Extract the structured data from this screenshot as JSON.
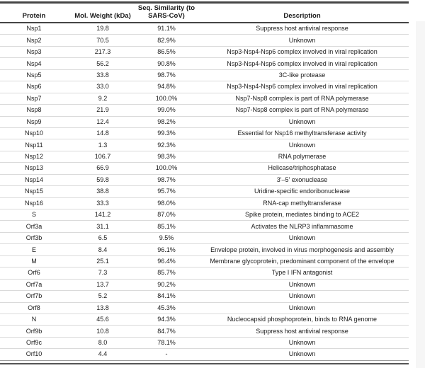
{
  "table": {
    "columns": [
      {
        "key": "protein",
        "label": "Protein"
      },
      {
        "key": "weight",
        "label": "Mol. Weight (kDa)"
      },
      {
        "key": "similarity",
        "label": "Seq. Similarity (to\nSARS-CoV)"
      },
      {
        "key": "description",
        "label": "Description"
      }
    ],
    "rows": [
      {
        "protein": "Nsp1",
        "weight": "19.8",
        "similarity": "91.1%",
        "description": "Suppress host antiviral response"
      },
      {
        "protein": "Nsp2",
        "weight": "70.5",
        "similarity": "82.9%",
        "description": "Unknown"
      },
      {
        "protein": "Nsp3",
        "weight": "217.3",
        "similarity": "86.5%",
        "description": "Nsp3-Nsp4-Nsp6 complex involved in viral replication"
      },
      {
        "protein": "Nsp4",
        "weight": "56.2",
        "similarity": "90.8%",
        "description": "Nsp3-Nsp4-Nsp6 complex involved in viral replication"
      },
      {
        "protein": "Nsp5",
        "weight": "33.8",
        "similarity": "98.7%",
        "description": "3C-like protease"
      },
      {
        "protein": "Nsp6",
        "weight": "33.0",
        "similarity": "94.8%",
        "description": "Nsp3-Nsp4-Nsp6 complex involved in viral replication"
      },
      {
        "protein": "Nsp7",
        "weight": "9.2",
        "similarity": "100.0%",
        "description": "Nsp7-Nsp8 complex is part of RNA polymerase"
      },
      {
        "protein": "Nsp8",
        "weight": "21.9",
        "similarity": "99.0%",
        "description": "Nsp7-Nsp8 complex is part of RNA polymerase"
      },
      {
        "protein": "Nsp9",
        "weight": "12.4",
        "similarity": "98.2%",
        "description": "Unknown"
      },
      {
        "protein": "Nsp10",
        "weight": "14.8",
        "similarity": "99.3%",
        "description": "Essential for Nsp16 methyltransferase activity"
      },
      {
        "protein": "Nsp11",
        "weight": "1.3",
        "similarity": "92.3%",
        "description": "Unknown"
      },
      {
        "protein": "Nsp12",
        "weight": "106.7",
        "similarity": "98.3%",
        "description": "RNA polymerase"
      },
      {
        "protein": "Nsp13",
        "weight": "66.9",
        "similarity": "100.0%",
        "description": "Helicase/triphosphatase"
      },
      {
        "protein": "Nsp14",
        "weight": "59.8",
        "similarity": "98.7%",
        "description": "3'–5' exonuclease"
      },
      {
        "protein": "Nsp15",
        "weight": "38.8",
        "similarity": "95.7%",
        "description": "Uridine-specific endoribonuclease"
      },
      {
        "protein": "Nsp16",
        "weight": "33.3",
        "similarity": "98.0%",
        "description": "RNA-cap methyltransferase"
      },
      {
        "protein": "S",
        "weight": "141.2",
        "similarity": "87.0%",
        "description": "Spike protein, mediates binding to ACE2"
      },
      {
        "protein": "Orf3a",
        "weight": "31.1",
        "similarity": "85.1%",
        "description": "Activates the NLRP3 inflammasome"
      },
      {
        "protein": "Orf3b",
        "weight": "6.5",
        "similarity": "9.5%",
        "description": "Unknown"
      },
      {
        "protein": "E",
        "weight": "8.4",
        "similarity": "96.1%",
        "description": "Envelope protein, involved in virus morphogenesis and assembly"
      },
      {
        "protein": "M",
        "weight": "25.1",
        "similarity": "96.4%",
        "description": "Membrane glycoprotein, predominant component of the envelope"
      },
      {
        "protein": "Orf6",
        "weight": "7.3",
        "similarity": "85.7%",
        "description": "Type I IFN antagonist"
      },
      {
        "protein": "Orf7a",
        "weight": "13.7",
        "similarity": "90.2%",
        "description": "Unknown"
      },
      {
        "protein": "Orf7b",
        "weight": "5.2",
        "similarity": "84.1%",
        "description": "Unknown"
      },
      {
        "protein": "Orf8",
        "weight": "13.8",
        "similarity": "45.3%",
        "description": "Unknown"
      },
      {
        "protein": "N",
        "weight": "45.6",
        "similarity": "94.3%",
        "description": "Nucleocapsid phosphoprotein, binds to RNA genome"
      },
      {
        "protein": "Orf9b",
        "weight": "10.8",
        "similarity": "84.7%",
        "description": "Suppress host antiviral response"
      },
      {
        "protein": "Orf9c",
        "weight": "8.0",
        "similarity": "78.1%",
        "description": "Unknown"
      },
      {
        "protein": "Orf10",
        "weight": "4.4",
        "similarity": "-",
        "description": "Unknown"
      }
    ]
  },
  "colors": {
    "rule_dark": "#454545",
    "rule_light": "#dadada",
    "rule_bottom": "#555555",
    "text": "#1a1a1a",
    "background": "#ffffff"
  }
}
